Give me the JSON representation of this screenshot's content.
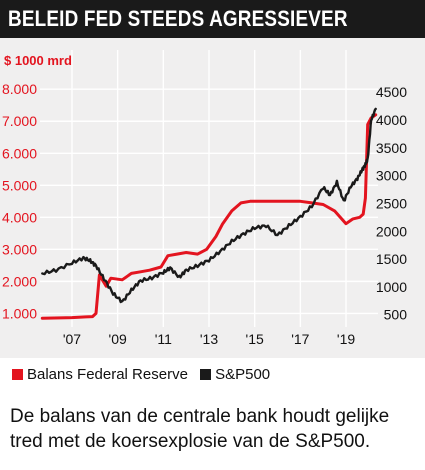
{
  "header": {
    "title": "BELEID FED STEEDS AGRESSIEVER"
  },
  "chart_data": {
    "type": "line",
    "unit_label": "$ 1000 mrd",
    "x_tick_labels": [
      "'07",
      "'09",
      "'11",
      "'13",
      "'15",
      "'17",
      "'19"
    ],
    "x_ticks": [
      2007,
      2009,
      2011,
      2013,
      2015,
      2017,
      2019
    ],
    "xlim": [
      2005.6,
      2020.4
    ],
    "left_axis": {
      "ylim": [
        0.7,
        8.6
      ],
      "ticks": [
        1.0,
        2.0,
        3.0,
        4.0,
        5.0,
        6.0,
        7.0,
        8.0
      ],
      "tick_labels": [
        "1.000",
        "2.000",
        "3.000",
        "4.000",
        "5.000",
        "6.000",
        "7.000",
        "8.000"
      ]
    },
    "right_axis": {
      "ylim": [
        350,
        4900
      ],
      "ticks": [
        500,
        1000,
        1500,
        2000,
        2500,
        3000,
        3500,
        4000,
        4500
      ],
      "tick_labels": [
        "500",
        "1000",
        "1500",
        "2000",
        "2500",
        "3000",
        "3500",
        "4000",
        "4500"
      ]
    },
    "grid": true,
    "series": [
      {
        "name": "Balans Federal Reserve",
        "axis": "left",
        "color": "#e3141f",
        "x": [
          2005.7,
          2007.0,
          2007.6,
          2007.9,
          2008.05,
          2008.2,
          2008.5,
          2008.7,
          2009.2,
          2009.6,
          2010.0,
          2010.4,
          2010.9,
          2011.2,
          2011.6,
          2012.0,
          2012.5,
          2012.9,
          2013.3,
          2013.6,
          2014.0,
          2014.4,
          2014.8,
          2015.5,
          2016.0,
          2016.5,
          2017.0,
          2017.5,
          2018.0,
          2018.5,
          2019.0,
          2019.3,
          2019.6,
          2019.75,
          2019.85,
          2019.95,
          2020.1,
          2020.3
        ],
        "y": [
          0.85,
          0.87,
          0.89,
          0.9,
          1.0,
          2.2,
          1.85,
          2.1,
          2.05,
          2.25,
          2.3,
          2.35,
          2.45,
          2.8,
          2.85,
          2.9,
          2.85,
          3.0,
          3.4,
          3.8,
          4.2,
          4.45,
          4.5,
          4.5,
          4.5,
          4.5,
          4.5,
          4.45,
          4.4,
          4.2,
          3.8,
          3.95,
          4.0,
          4.1,
          4.6,
          6.9,
          7.1,
          7.2
        ]
      },
      {
        "name": "S&P500",
        "axis": "right",
        "color": "#1a1a1a",
        "x": [
          2005.7,
          2006.3,
          2007.0,
          2007.5,
          2007.8,
          2008.05,
          2008.4,
          2008.8,
          2009.2,
          2009.6,
          2010.0,
          2010.5,
          2011.0,
          2011.3,
          2011.7,
          2012.0,
          2012.5,
          2013.0,
          2013.5,
          2014.0,
          2014.5,
          2015.0,
          2015.5,
          2016.0,
          2016.5,
          2017.0,
          2017.5,
          2018.0,
          2018.3,
          2018.6,
          2018.9,
          2019.2,
          2019.5,
          2019.7,
          2019.85,
          2019.95,
          2020.1,
          2020.3
        ],
        "y": [
          1240,
          1300,
          1430,
          1520,
          1470,
          1380,
          1150,
          880,
          730,
          940,
          1110,
          1160,
          1260,
          1340,
          1170,
          1300,
          1380,
          1480,
          1640,
          1820,
          1950,
          2060,
          2100,
          1930,
          2100,
          2260,
          2450,
          2790,
          2650,
          2880,
          2540,
          2800,
          2950,
          3100,
          3200,
          3300,
          4000,
          4200
        ]
      }
    ]
  },
  "legend": {
    "items": [
      "Balans Federal Reserve",
      "S&P500"
    ]
  },
  "caption": "De balans van de centrale bank houdt gelijke tred met de koersexplosie van de S&P500."
}
